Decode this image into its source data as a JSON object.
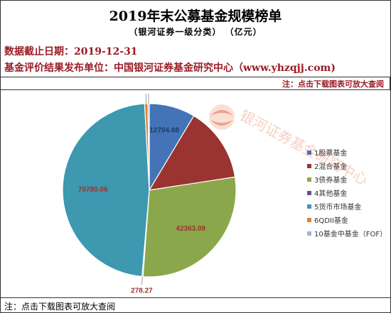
{
  "header": {
    "title": "2019年末公募基金规模榜单",
    "subtitle": "（银河证券一级分类）  （亿元）",
    "date_line": "数据截止日期：2019-12-31",
    "publisher_line": "基金评价结果发布单位：中国银河证券基金研究中心（www.yhzqjj.com)",
    "note_top": "注：点击下载图表可放大查阅"
  },
  "footer": {
    "note": "注：点击下载图表可放大查阅"
  },
  "watermark": {
    "text": "银河证券基金研究中心"
  },
  "chart_data": {
    "type": "pie",
    "legend_position": "right",
    "slices": [
      {
        "label": "1股票基金",
        "value": 12704.68,
        "display": "12704.68",
        "color": "#4473b8"
      },
      {
        "label": "2混合基金",
        "value": 20707.99,
        "display": "20707.99",
        "color": "#9a3430"
      },
      {
        "label": "3债券基金",
        "value": 42363.09,
        "display": "42363.09",
        "color": "#8aa84b"
      },
      {
        "label": "4其他基金",
        "value": 278.27,
        "display": "278.27",
        "color": "#6b4b91"
      },
      {
        "label": "5货币市场基金",
        "value": 70780.06,
        "display": "70780.06",
        "color": "#3d98b0"
      },
      {
        "label": "6QDII基金",
        "value": 897.61,
        "display": "897.61",
        "color": "#e2822f"
      },
      {
        "label": "10基金中基金（FOF）",
        "value": 383.4,
        "display": "383.4",
        "color": "#9fb6d9"
      }
    ]
  }
}
